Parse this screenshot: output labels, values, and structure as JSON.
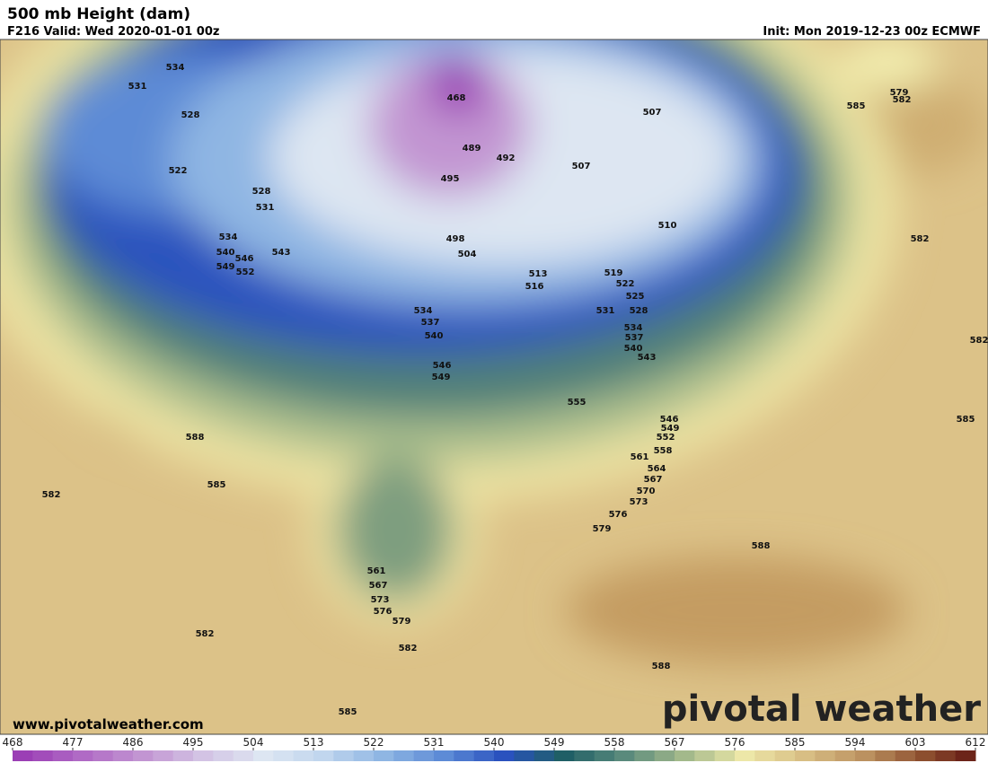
{
  "header": {
    "title": "500 mb Height (dam)",
    "valid": "F216 Valid: Wed 2020-01-01 00z",
    "init": "Init: Mon 2019-12-23 00z ECMWF"
  },
  "contour_labels": [
    534,
    531,
    528,
    522,
    528,
    531,
    534,
    540,
    546,
    549,
    552,
    543,
    468,
    489,
    492,
    495,
    507,
    507,
    510,
    498,
    504,
    513,
    516,
    519,
    522,
    525,
    528,
    531,
    534,
    537,
    540,
    543,
    534,
    537,
    540,
    546,
    549,
    555,
    546,
    549,
    552,
    558,
    561,
    564,
    567,
    570,
    573,
    576,
    579,
    579,
    582,
    585,
    582,
    582,
    585,
    588,
    585,
    582,
    588,
    588,
    561,
    567,
    573,
    576,
    579,
    582,
    582,
    585
  ],
  "footer": {
    "website": "www.pivotalweather.com",
    "logo": "pivotal weather"
  },
  "colorbar": {
    "ticks": [
      468,
      477,
      486,
      495,
      504,
      513,
      522,
      531,
      540,
      549,
      558,
      567,
      576,
      585,
      594,
      603,
      612
    ],
    "colors": [
      "#9b3fb5",
      "#b06ac5",
      "#c295d2",
      "#d3c3e4",
      "#dde6f2",
      "#c1d6ee",
      "#8fb6e3",
      "#5d8bd6",
      "#2a52be",
      "#1f5f66",
      "#5a8a7c",
      "#a3b98b",
      "#ede7a8",
      "#d8be84",
      "#bb9160",
      "#8c4e2e",
      "#5c0f0f"
    ]
  }
}
